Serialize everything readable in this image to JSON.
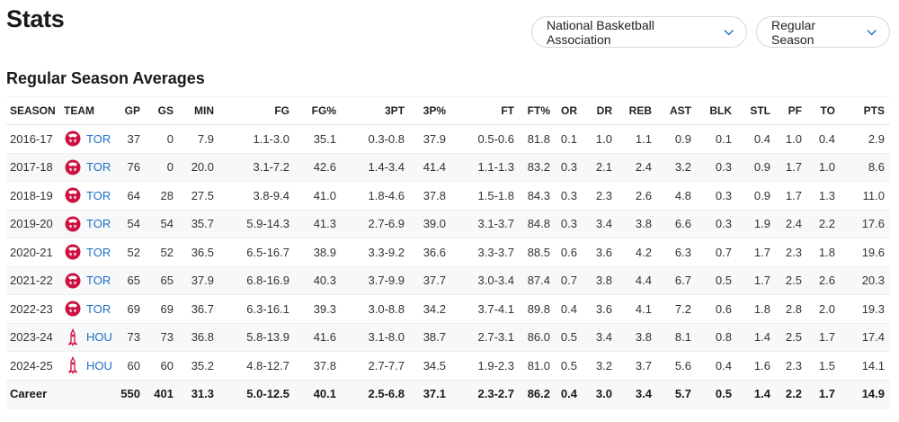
{
  "page": {
    "title": "Stats"
  },
  "filters": {
    "league": "National Basketball Association",
    "season_type": "Regular Season"
  },
  "section": {
    "title": "Regular Season Averages"
  },
  "table": {
    "columns": [
      "SEASON",
      "TEAM",
      "GP",
      "GS",
      "MIN",
      "FG",
      "FG%",
      "3PT",
      "3P%",
      "FT",
      "FT%",
      "OR",
      "DR",
      "REB",
      "AST",
      "BLK",
      "STL",
      "PF",
      "TO",
      "PTS"
    ],
    "rows": [
      {
        "season": "2016-17",
        "team": "TOR",
        "logo": "raptors-logo-icon",
        "stats": [
          "37",
          "0",
          "7.9",
          "1.1-3.0",
          "35.1",
          "0.3-0.8",
          "37.9",
          "0.5-0.6",
          "81.8",
          "0.1",
          "1.0",
          "1.1",
          "0.9",
          "0.1",
          "0.4",
          "1.0",
          "0.4",
          "2.9"
        ]
      },
      {
        "season": "2017-18",
        "team": "TOR",
        "logo": "raptors-logo-icon",
        "stats": [
          "76",
          "0",
          "20.0",
          "3.1-7.2",
          "42.6",
          "1.4-3.4",
          "41.4",
          "1.1-1.3",
          "83.2",
          "0.3",
          "2.1",
          "2.4",
          "3.2",
          "0.3",
          "0.9",
          "1.7",
          "1.0",
          "8.6"
        ]
      },
      {
        "season": "2018-19",
        "team": "TOR",
        "logo": "raptors-logo-icon",
        "stats": [
          "64",
          "28",
          "27.5",
          "3.8-9.4",
          "41.0",
          "1.8-4.6",
          "37.8",
          "1.5-1.8",
          "84.3",
          "0.3",
          "2.3",
          "2.6",
          "4.8",
          "0.3",
          "0.9",
          "1.7",
          "1.3",
          "11.0"
        ]
      },
      {
        "season": "2019-20",
        "team": "TOR",
        "logo": "raptors-logo-icon",
        "stats": [
          "54",
          "54",
          "35.7",
          "5.9-14.3",
          "41.3",
          "2.7-6.9",
          "39.0",
          "3.1-3.7",
          "84.8",
          "0.3",
          "3.4",
          "3.8",
          "6.6",
          "0.3",
          "1.9",
          "2.4",
          "2.2",
          "17.6"
        ]
      },
      {
        "season": "2020-21",
        "team": "TOR",
        "logo": "raptors-logo-icon",
        "stats": [
          "52",
          "52",
          "36.5",
          "6.5-16.7",
          "38.9",
          "3.3-9.2",
          "36.6",
          "3.3-3.7",
          "88.5",
          "0.6",
          "3.6",
          "4.2",
          "6.3",
          "0.7",
          "1.7",
          "2.3",
          "1.8",
          "19.6"
        ]
      },
      {
        "season": "2021-22",
        "team": "TOR",
        "logo": "raptors-logo-icon",
        "stats": [
          "65",
          "65",
          "37.9",
          "6.8-16.9",
          "40.3",
          "3.7-9.9",
          "37.7",
          "3.0-3.4",
          "87.4",
          "0.7",
          "3.8",
          "4.4",
          "6.7",
          "0.5",
          "1.7",
          "2.5",
          "2.6",
          "20.3"
        ]
      },
      {
        "season": "2022-23",
        "team": "TOR",
        "logo": "raptors-logo-icon",
        "stats": [
          "69",
          "69",
          "36.7",
          "6.3-16.1",
          "39.3",
          "3.0-8.8",
          "34.2",
          "3.7-4.1",
          "89.8",
          "0.4",
          "3.6",
          "4.1",
          "7.2",
          "0.6",
          "1.8",
          "2.8",
          "2.0",
          "19.3"
        ]
      },
      {
        "season": "2023-24",
        "team": "HOU",
        "logo": "rockets-logo-icon",
        "stats": [
          "73",
          "73",
          "36.8",
          "5.8-13.9",
          "41.6",
          "3.1-8.0",
          "38.7",
          "2.7-3.1",
          "86.0",
          "0.5",
          "3.4",
          "3.8",
          "8.1",
          "0.8",
          "1.4",
          "2.5",
          "1.7",
          "17.4"
        ]
      },
      {
        "season": "2024-25",
        "team": "HOU",
        "logo": "rockets-logo-icon",
        "stats": [
          "60",
          "60",
          "35.2",
          "4.8-12.7",
          "37.8",
          "2.7-7.7",
          "34.5",
          "1.9-2.3",
          "81.0",
          "0.5",
          "3.2",
          "3.7",
          "5.6",
          "0.4",
          "1.6",
          "2.3",
          "1.5",
          "14.1"
        ]
      }
    ],
    "career": {
      "label": "Career",
      "stats": [
        "550",
        "401",
        "31.3",
        "5.0-12.5",
        "40.1",
        "2.5-6.8",
        "37.1",
        "2.3-2.7",
        "86.2",
        "0.4",
        "3.0",
        "3.4",
        "5.7",
        "0.5",
        "1.4",
        "2.2",
        "1.7",
        "14.9"
      ]
    }
  },
  "colors": {
    "link": "#1d6fc3",
    "raptors_red": "#ce1141",
    "rockets_red": "#ce1141"
  }
}
